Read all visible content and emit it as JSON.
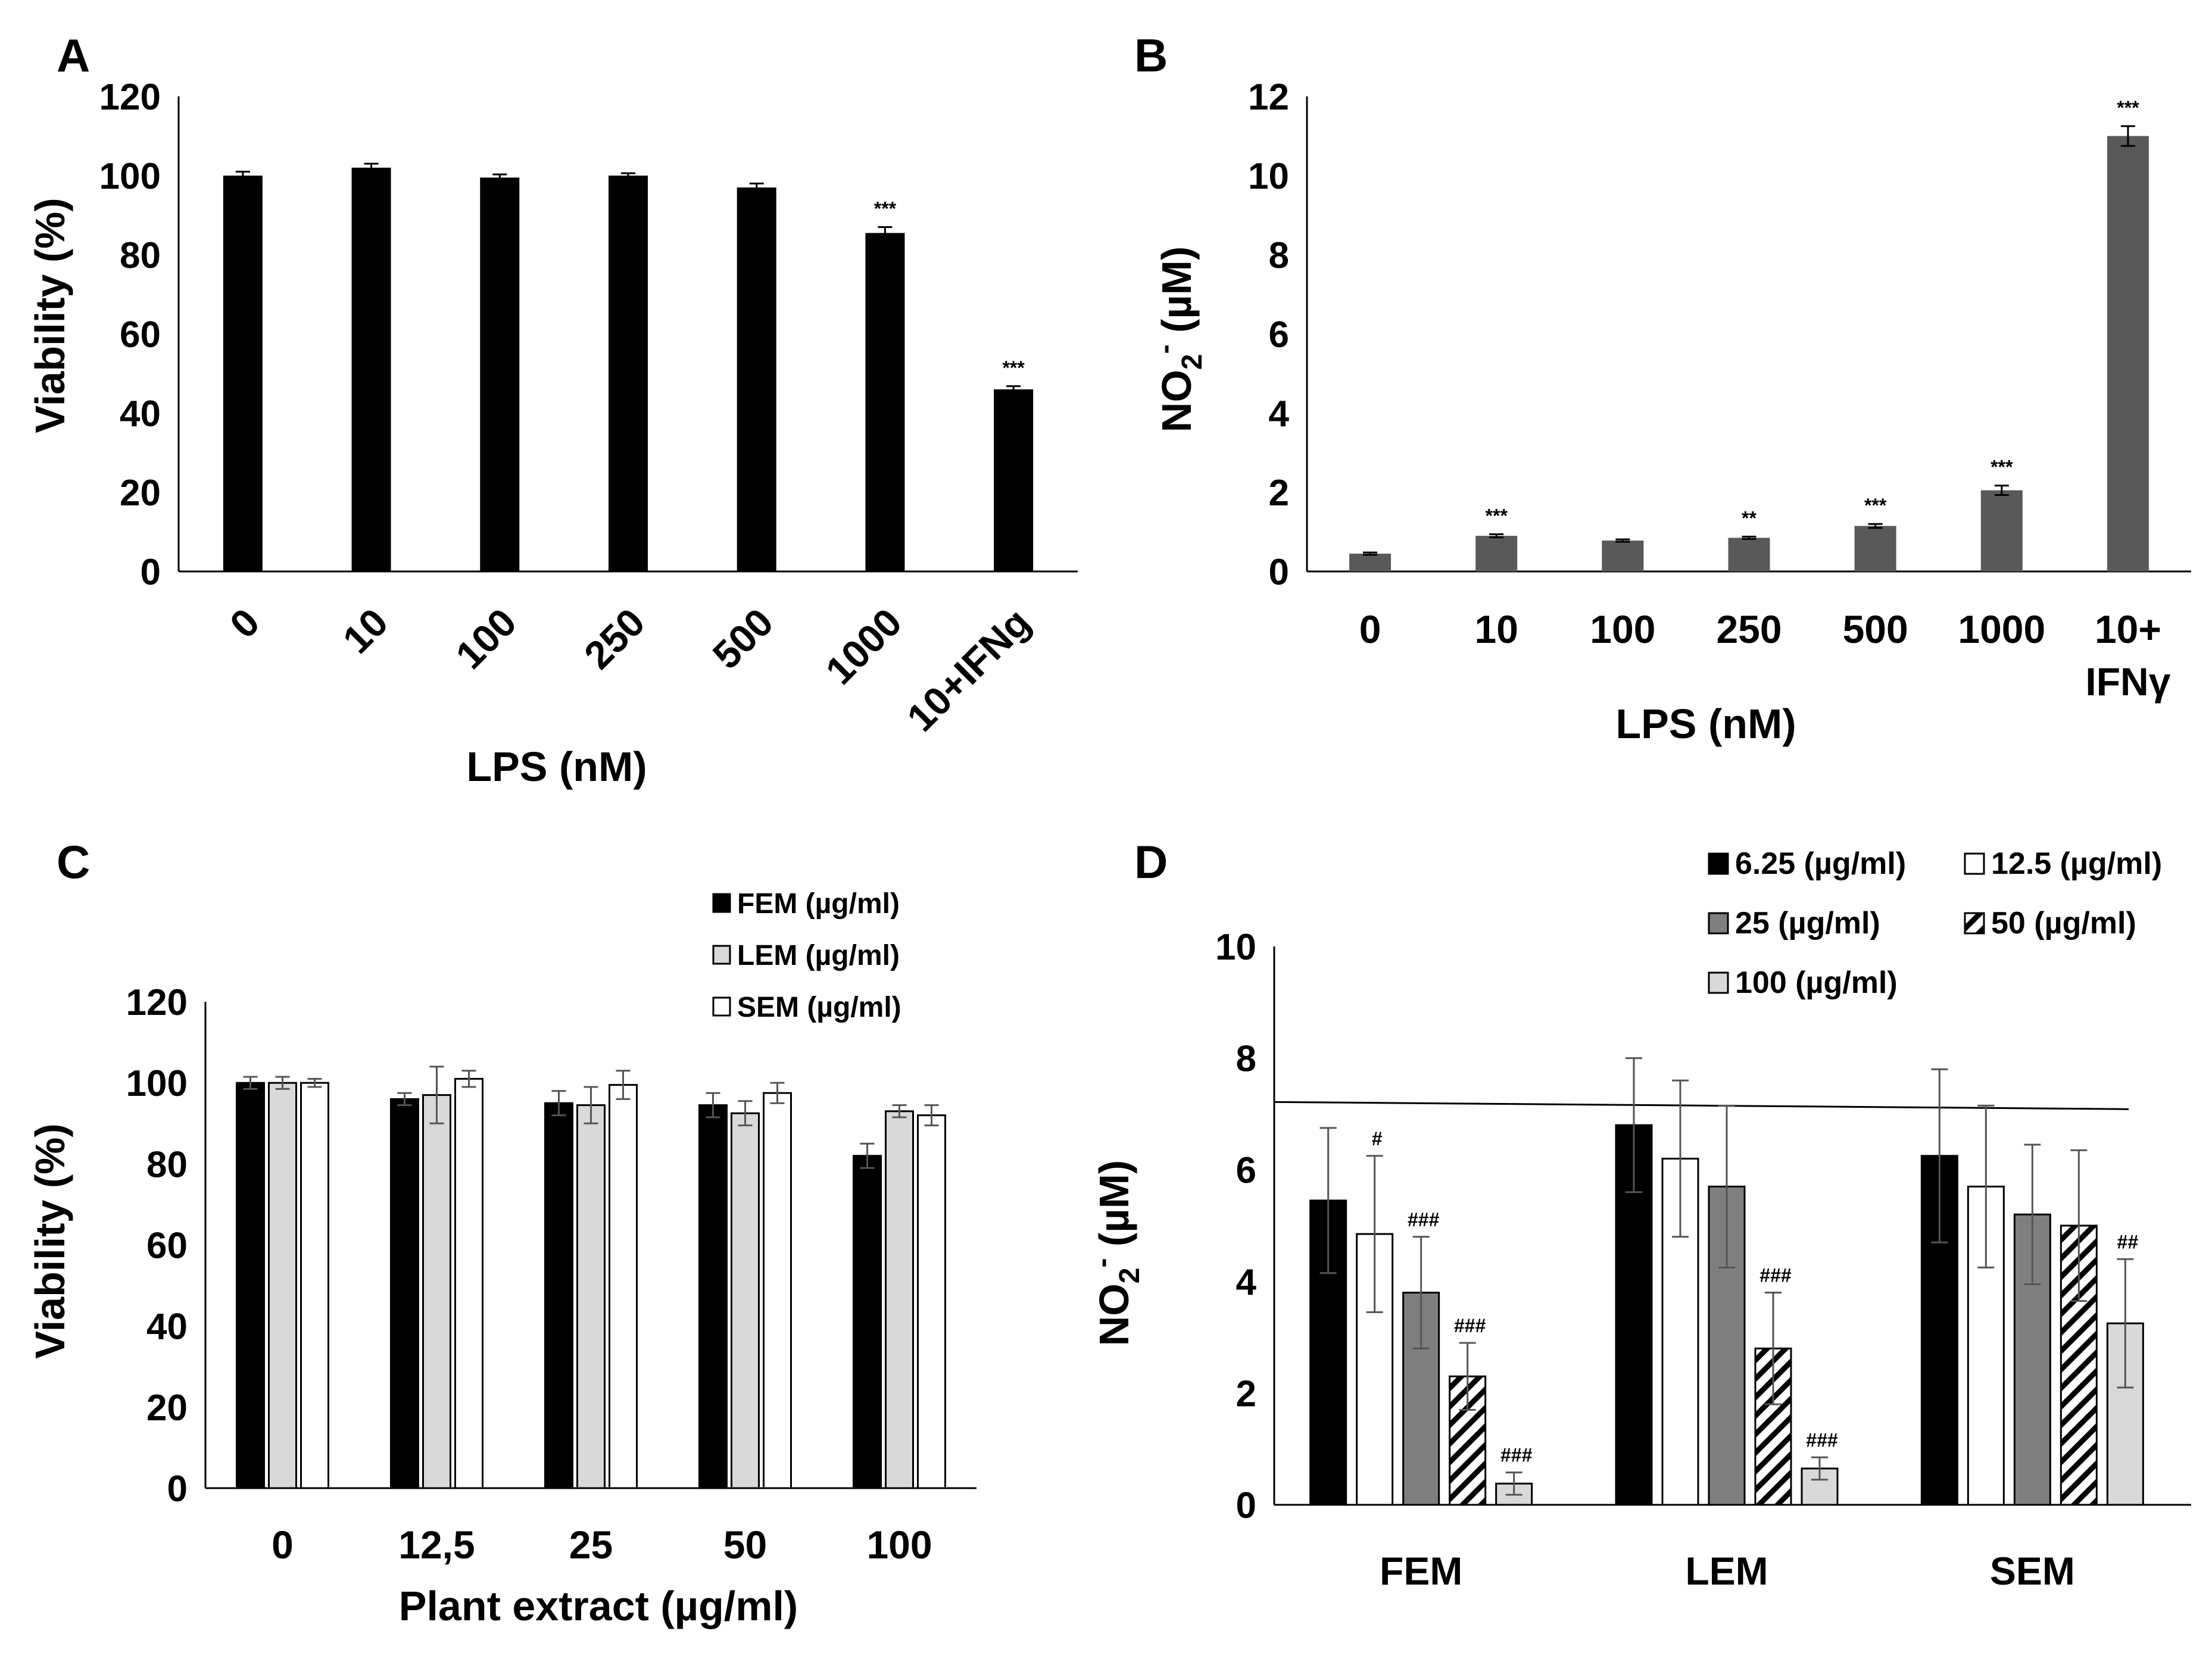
{
  "colors": {
    "black": "#000000",
    "gray_dark": "#595959",
    "gray_mid": "#7f7f7f",
    "gray_light": "#d9d9d9",
    "white": "#ffffff"
  },
  "chart_data": [
    {
      "panel": "A",
      "type": "bar",
      "categories": [
        "0",
        "10",
        "100",
        "250",
        "500",
        "1000",
        "10+IFNg"
      ],
      "values": [
        100,
        102,
        99.5,
        100,
        97,
        85.5,
        46
      ],
      "errors": [
        1,
        1,
        0.8,
        0.6,
        1,
        1.5,
        0.8
      ],
      "annotations": [
        "",
        "",
        "",
        "",
        "",
        "***",
        "***"
      ],
      "xlabel": "LPS (nM)",
      "ylabel": "Viability (%)",
      "ylim": [
        0,
        120
      ],
      "yticks": [
        "0",
        "20",
        "40",
        "60",
        "80",
        "100",
        "120"
      ],
      "color": "#000000"
    },
    {
      "panel": "B",
      "type": "bar",
      "categories": [
        "0",
        "10",
        "100",
        "250",
        "500",
        "1000",
        "10+ IFNγ"
      ],
      "categories_lines": [
        [
          "0"
        ],
        [
          "10"
        ],
        [
          "100"
        ],
        [
          "250"
        ],
        [
          "500"
        ],
        [
          "1000"
        ],
        [
          "10+",
          "IFNγ"
        ]
      ],
      "values": [
        0.45,
        0.9,
        0.78,
        0.85,
        1.15,
        2.05,
        11
      ],
      "errors": [
        0.03,
        0.04,
        0.03,
        0.03,
        0.05,
        0.12,
        0.25
      ],
      "annotations": [
        "",
        "***",
        "",
        "**",
        "***",
        "***",
        "***"
      ],
      "xlabel": "LPS (nM)",
      "ylabel_main": "NO",
      "ylabel_sub": "2",
      "ylabel_sup": "-",
      "ylabel_rest": " (µM)",
      "ylim": [
        0,
        12
      ],
      "yticks": [
        "0",
        "2",
        "4",
        "6",
        "8",
        "10",
        "12"
      ],
      "color": "#595959"
    },
    {
      "panel": "C",
      "type": "bar",
      "categories": [
        "0",
        "12,5",
        "25",
        "50",
        "100"
      ],
      "series": [
        {
          "name": "FEM (µg/ml)",
          "values": [
            100,
            96,
            95,
            94.5,
            82
          ],
          "errors": [
            1.5,
            1.5,
            3,
            3,
            3
          ],
          "fill": "#000000",
          "pattern": "solid"
        },
        {
          "name": "LEM (µg/ml)",
          "values": [
            100,
            97,
            94.5,
            92.5,
            93
          ],
          "errors": [
            1.5,
            7,
            4.5,
            3,
            1.5
          ],
          "fill": "#d9d9d9",
          "pattern": "solid"
        },
        {
          "name": "SEM (µg/ml)",
          "values": [
            100,
            101,
            99.5,
            97.5,
            92
          ],
          "errors": [
            1,
            2,
            3.5,
            2.5,
            2.5
          ],
          "fill": "#ffffff",
          "pattern": "solid"
        }
      ],
      "xlabel": "Plant extract (µg/ml)",
      "ylabel": "Viability (%)",
      "ylim": [
        0,
        120
      ],
      "yticks": [
        "0",
        "20",
        "40",
        "60",
        "80",
        "100",
        "120"
      ],
      "legend": "top-right"
    },
    {
      "panel": "D",
      "type": "bar",
      "categories": [
        "FEM",
        "LEM",
        "SEM"
      ],
      "series": [
        {
          "name": "6.25 (µg/ml)",
          "values": [
            5.45,
            6.8,
            6.25
          ],
          "errors": [
            1.3,
            1.2,
            1.55
          ],
          "annotations": [
            "",
            "",
            ""
          ],
          "fill": "#000000",
          "pattern": "solid"
        },
        {
          "name": "12.5 (µg/ml)",
          "values": [
            4.85,
            6.2,
            5.7
          ],
          "errors": [
            1.4,
            1.4,
            1.45
          ],
          "annotations": [
            "#",
            "",
            ""
          ],
          "fill": "#ffffff",
          "pattern": "solid"
        },
        {
          "name": "25 (µg/ml)",
          "values": [
            3.8,
            5.7,
            5.2
          ],
          "errors": [
            1.0,
            1.45,
            1.25
          ],
          "annotations": [
            "###",
            "",
            ""
          ],
          "fill": "#7f7f7f",
          "pattern": "solid"
        },
        {
          "name": "50 (µg/ml)",
          "values": [
            2.3,
            2.8,
            5.0
          ],
          "errors": [
            0.6,
            1.0,
            1.35
          ],
          "annotations": [
            "###",
            "###",
            ""
          ],
          "fill": "#ffffff",
          "pattern": "hatch"
        },
        {
          "name": "100 (µg/ml)",
          "values": [
            0.38,
            0.65,
            3.25
          ],
          "errors": [
            0.2,
            0.2,
            1.15
          ],
          "annotations": [
            "###",
            "###",
            "##"
          ],
          "fill": "#d9d9d9",
          "pattern": "solid"
        }
      ],
      "reference_line": 7.15,
      "ylabel_main": "NO",
      "ylabel_sub": "2",
      "ylabel_sup": "-",
      "ylabel_rest": " (µM)",
      "ylim": [
        0,
        10
      ],
      "yticks": [
        "0",
        "2",
        "4",
        "6",
        "8",
        "10"
      ],
      "legend": "top-right"
    }
  ]
}
